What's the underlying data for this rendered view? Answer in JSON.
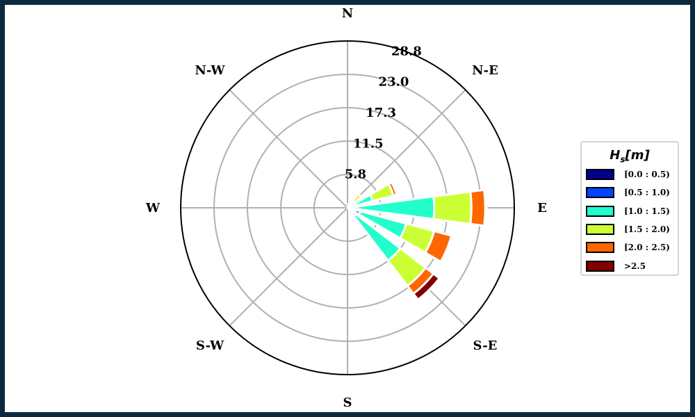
{
  "chart_data": {
    "type": "windrose",
    "directions": [
      "N",
      "N-E",
      "E",
      "S-E",
      "S",
      "S-W",
      "W",
      "N-W"
    ],
    "ring_labels": [
      "5.8",
      "11.5",
      "17.3",
      "23.0",
      "28.8"
    ],
    "r_max": 28.8,
    "legend_title": "H",
    "legend_title_sub": "s",
    "legend_title_unit": "[m]",
    "bin_colors": [
      "#00008b",
      "#0044ff",
      "#22ffcc",
      "#ccff33",
      "#ff6600",
      "#800000"
    ],
    "series": [
      {
        "name": "[0.0 : 0.5)"
      },
      {
        "name": "[0.5 : 1.0)"
      },
      {
        "name": "[1.0 : 1.5)"
      },
      {
        "name": "[1.5 : 2.0)"
      },
      {
        "name": "[2.0 : 2.5)"
      },
      {
        "name": ">2.5"
      }
    ],
    "sectors": [
      {
        "bearing": 22.5,
        "cumulative": [
          0.0,
          0.1,
          0.5,
          0.8,
          0.8,
          0.8
        ]
      },
      {
        "bearing": 45.0,
        "cumulative": [
          0.0,
          0.2,
          1.5,
          3.0,
          3.0,
          3.0
        ]
      },
      {
        "bearing": 67.5,
        "cumulative": [
          0.0,
          0.4,
          4.5,
          8.2,
          8.8,
          9.0
        ]
      },
      {
        "bearing": 90.0,
        "cumulative": [
          0.3,
          1.8,
          15.0,
          21.4,
          23.8,
          24.0
        ]
      },
      {
        "bearing": 112.5,
        "cumulative": [
          0.5,
          2.3,
          10.5,
          15.5,
          18.6,
          18.9
        ]
      },
      {
        "bearing": 135.0,
        "cumulative": [
          1.0,
          1.8,
          11.5,
          17.0,
          18.7,
          20.0
        ]
      }
    ]
  }
}
